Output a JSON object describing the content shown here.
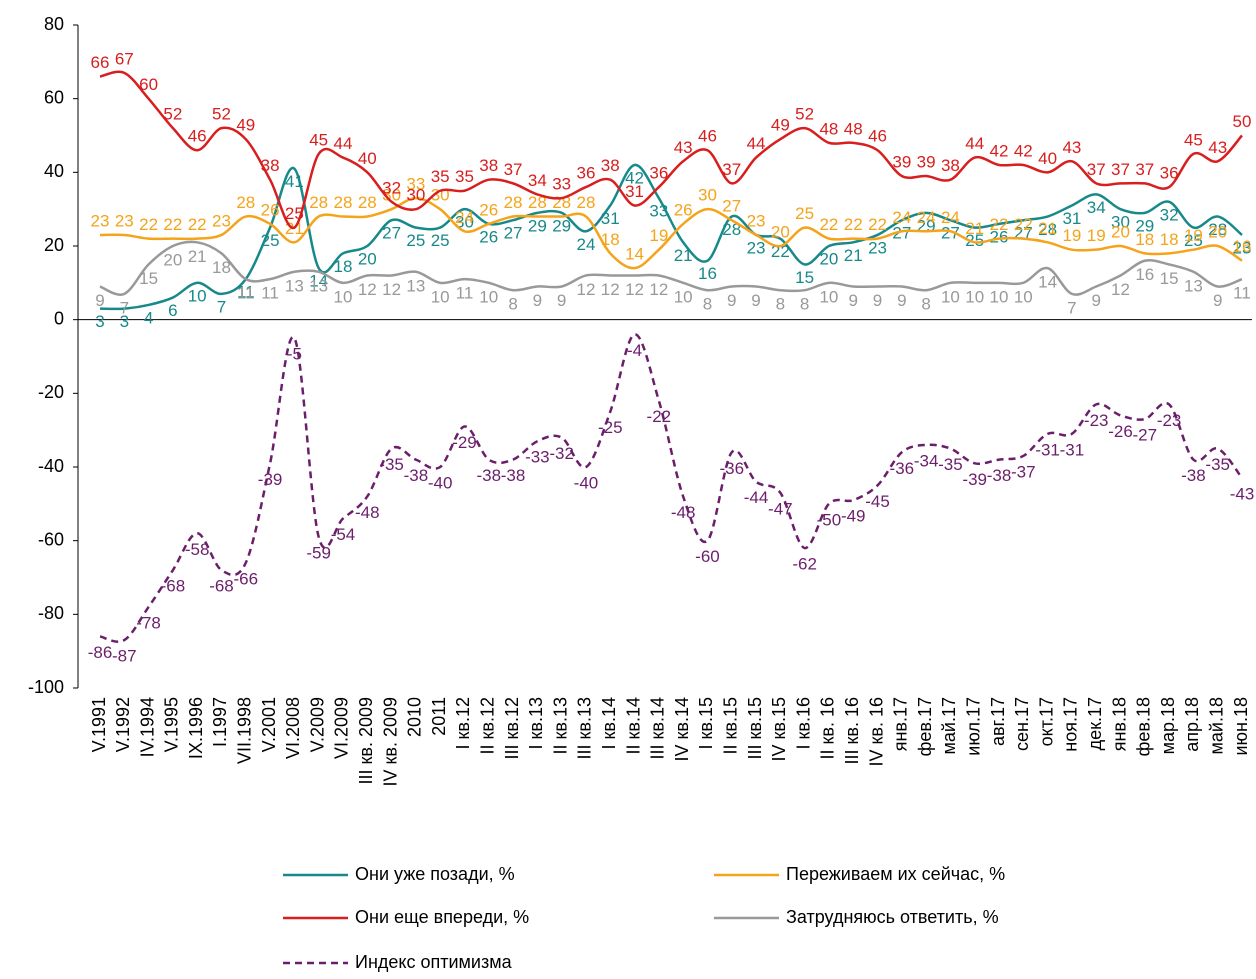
{
  "chart_data": {
    "type": "line",
    "categories": [
      "V.1991",
      "V.1992",
      "IV.1994",
      "V.1995",
      "IX.1996",
      "I.1997",
      "VII.1998",
      "V.2001",
      "VI.2008",
      "V.2009",
      "VI.2009",
      "III кв. 2009",
      "IV кв. 2009",
      "2010",
      "2011",
      "I кв.12",
      "II кв.12",
      "III кв.12",
      "I кв.13",
      "II кв.13",
      "III кв.13",
      "I кв.14",
      "II кв.14",
      "III кв.14",
      "IV кв.14",
      "I кв.15",
      "II кв.15",
      "III кв.15",
      "IV кв.15",
      "I кв.16",
      "II кв. 16",
      "III кв. 16",
      "IV кв. 16",
      "янв.17",
      "фев.17",
      "май.17",
      "июл.17",
      "авг.17",
      "сен.17",
      "окт.17",
      "ноя.17",
      "дек.17",
      "янв.18",
      "фев.18",
      "мар.18",
      "апр.18",
      "май.18",
      "июн.18"
    ],
    "series": [
      {
        "name": "Они уже позади, %",
        "color": "#17898a",
        "dash": false,
        "values": [
          3,
          3,
          4,
          6,
          10,
          7,
          11,
          25,
          41,
          14,
          18,
          20,
          27,
          25,
          25,
          30,
          26,
          27,
          29,
          29,
          24,
          31,
          42,
          33,
          21,
          16,
          28,
          23,
          22,
          15,
          20,
          21,
          23,
          27,
          29,
          27,
          25,
          26,
          27,
          28,
          31,
          34,
          30,
          29,
          32,
          25,
          28,
          23
        ]
      },
      {
        "name": "Переживаем их сейчас, %",
        "color": "#f5a31a",
        "dash": false,
        "values": [
          23,
          23,
          22,
          22,
          22,
          23,
          28,
          26,
          21,
          28,
          28,
          28,
          30,
          33,
          30,
          24,
          26,
          28,
          28,
          28,
          28,
          18,
          14,
          19,
          26,
          30,
          27,
          23,
          20,
          25,
          22,
          22,
          22,
          24,
          24,
          24,
          21,
          22,
          22,
          21,
          19,
          19,
          20,
          18,
          18,
          19,
          20,
          16
        ]
      },
      {
        "name": "Они еще впереди, %",
        "color": "#d81e1e",
        "dash": false,
        "values": [
          66,
          67,
          60,
          52,
          46,
          52,
          49,
          38,
          25,
          45,
          44,
          40,
          32,
          30,
          35,
          35,
          38,
          37,
          34,
          33,
          36,
          38,
          31,
          36,
          43,
          46,
          37,
          44,
          49,
          52,
          48,
          48,
          46,
          39,
          39,
          38,
          44,
          42,
          42,
          40,
          43,
          37,
          37,
          37,
          36,
          45,
          43,
          50
        ]
      },
      {
        "name": "Затрудняюсь ответить, %",
        "color": "#999999",
        "dash": false,
        "values": [
          9,
          7,
          15,
          20,
          21,
          18,
          11,
          11,
          13,
          13,
          10,
          12,
          12,
          13,
          10,
          11,
          10,
          8,
          9,
          9,
          12,
          12,
          12,
          12,
          10,
          8,
          9,
          9,
          8,
          8,
          10,
          9,
          9,
          9,
          8,
          10,
          10,
          10,
          10,
          14,
          7,
          9,
          12,
          16,
          15,
          13,
          9,
          11
        ]
      },
      {
        "name": "Индекс оптимизма",
        "color": "#6b1f6b",
        "dash": true,
        "values": [
          -86,
          -87,
          -78,
          -68,
          -58,
          -68,
          -66,
          -39,
          -5,
          -59,
          -54,
          -48,
          -35,
          -38,
          -40,
          -29,
          -38,
          -38,
          -33,
          -32,
          -40,
          -25,
          -4,
          -22,
          -48,
          -60,
          -36,
          -44,
          -47,
          -62,
          -50,
          -49,
          -45,
          -36,
          -34,
          -35,
          -39,
          -38,
          -37,
          -31,
          -31,
          -23,
          -26,
          -27,
          -23,
          -38,
          -35,
          -43
        ]
      }
    ],
    "ylim": [
      -100,
      80
    ],
    "yticks": [
      -100,
      -80,
      -60,
      -40,
      -20,
      0,
      20,
      40,
      60,
      80
    ],
    "grid": false,
    "legend": "bottom"
  }
}
